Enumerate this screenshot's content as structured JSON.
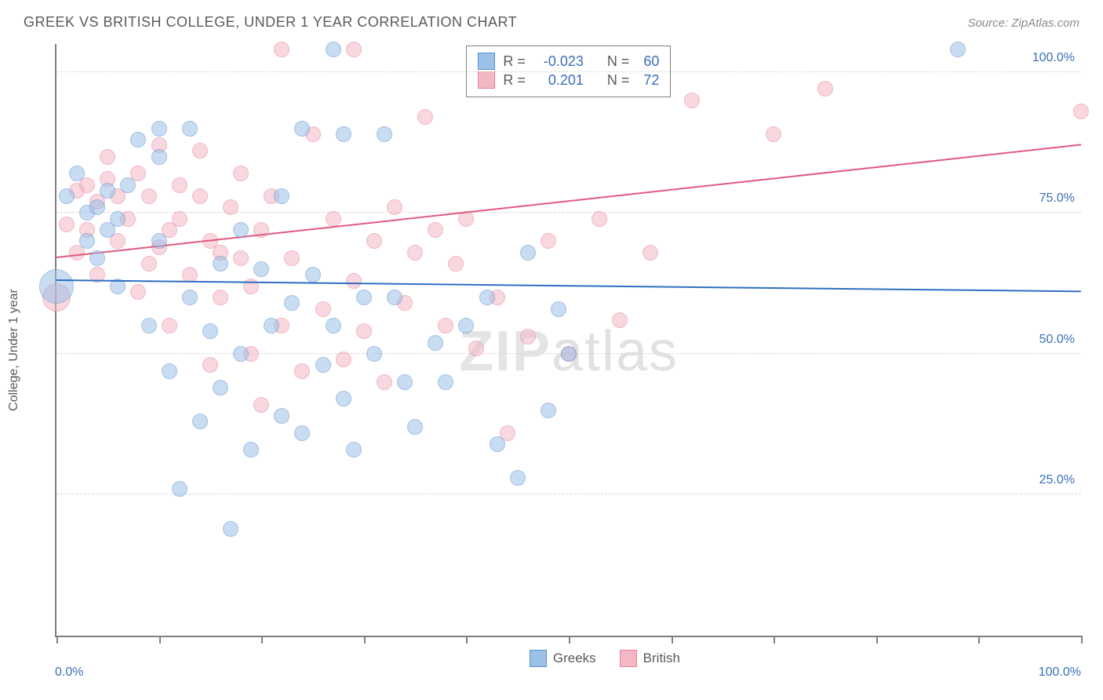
{
  "title": "GREEK VS BRITISH COLLEGE, UNDER 1 YEAR CORRELATION CHART",
  "source": "Source: ZipAtlas.com",
  "ylabel": "College, Under 1 year",
  "watermark": {
    "bold": "ZIP",
    "rest": "atlas"
  },
  "chart": {
    "type": "scatter",
    "xlim": [
      0,
      100
    ],
    "ylim": [
      0,
      105
    ],
    "background_color": "#ffffff",
    "grid_color": "#d9d9d9",
    "axis_color": "#808080",
    "tick_label_color": "#3b6fb6",
    "tick_fontsize": 16,
    "yticks": [
      25,
      50,
      75,
      100
    ],
    "ytick_labels": [
      "25.0%",
      "50.0%",
      "75.0%",
      "100.0%"
    ],
    "xticks": [
      0,
      10,
      20,
      30,
      40,
      50,
      60,
      70,
      80,
      90,
      100
    ],
    "xaxis_label_left": "0.0%",
    "xaxis_label_right": "100.0%",
    "marker_radius": 10,
    "marker_opacity": 0.55,
    "trend_width": 2
  },
  "series": {
    "greeks": {
      "label": "Greeks",
      "fill": "#9cc1e8",
      "stroke": "#5a8fce",
      "trend_color": "#2f6fc0",
      "R": "-0.023",
      "N": "60",
      "trend": {
        "x1": 0,
        "y1": 63,
        "x2": 100,
        "y2": 61
      },
      "points": [
        {
          "x": 0,
          "y": 62,
          "r": 22
        },
        {
          "x": 1,
          "y": 78
        },
        {
          "x": 2,
          "y": 82
        },
        {
          "x": 3,
          "y": 70
        },
        {
          "x": 3,
          "y": 75
        },
        {
          "x": 4,
          "y": 76
        },
        {
          "x": 4,
          "y": 67
        },
        {
          "x": 5,
          "y": 79
        },
        {
          "x": 5,
          "y": 72
        },
        {
          "x": 6,
          "y": 62
        },
        {
          "x": 7,
          "y": 80
        },
        {
          "x": 8,
          "y": 88
        },
        {
          "x": 9,
          "y": 55
        },
        {
          "x": 10,
          "y": 90
        },
        {
          "x": 10,
          "y": 70
        },
        {
          "x": 11,
          "y": 47
        },
        {
          "x": 12,
          "y": 26
        },
        {
          "x": 13,
          "y": 90
        },
        {
          "x": 13,
          "y": 60
        },
        {
          "x": 14,
          "y": 38
        },
        {
          "x": 15,
          "y": 54
        },
        {
          "x": 16,
          "y": 66
        },
        {
          "x": 16,
          "y": 44
        },
        {
          "x": 17,
          "y": 19
        },
        {
          "x": 18,
          "y": 72
        },
        {
          "x": 18,
          "y": 50
        },
        {
          "x": 19,
          "y": 33
        },
        {
          "x": 20,
          "y": 65
        },
        {
          "x": 21,
          "y": 55
        },
        {
          "x": 22,
          "y": 78
        },
        {
          "x": 22,
          "y": 39
        },
        {
          "x": 23,
          "y": 59
        },
        {
          "x": 24,
          "y": 90
        },
        {
          "x": 24,
          "y": 36
        },
        {
          "x": 25,
          "y": 64
        },
        {
          "x": 26,
          "y": 48
        },
        {
          "x": 27,
          "y": 104
        },
        {
          "x": 27,
          "y": 55
        },
        {
          "x": 28,
          "y": 89
        },
        {
          "x": 28,
          "y": 42
        },
        {
          "x": 29,
          "y": 33
        },
        {
          "x": 30,
          "y": 60
        },
        {
          "x": 31,
          "y": 50
        },
        {
          "x": 32,
          "y": 89
        },
        {
          "x": 33,
          "y": 60
        },
        {
          "x": 34,
          "y": 45
        },
        {
          "x": 35,
          "y": 37
        },
        {
          "x": 37,
          "y": 52
        },
        {
          "x": 38,
          "y": 45
        },
        {
          "x": 40,
          "y": 55
        },
        {
          "x": 42,
          "y": 60
        },
        {
          "x": 43,
          "y": 34
        },
        {
          "x": 45,
          "y": 28
        },
        {
          "x": 46,
          "y": 68
        },
        {
          "x": 48,
          "y": 40
        },
        {
          "x": 49,
          "y": 58
        },
        {
          "x": 50,
          "y": 50
        },
        {
          "x": 88,
          "y": 104
        },
        {
          "x": 10,
          "y": 85
        },
        {
          "x": 6,
          "y": 74
        }
      ]
    },
    "british": {
      "label": "British",
      "fill": "#f4b7c4",
      "stroke": "#e87f9a",
      "trend_color": "#e05a7e",
      "R": "0.201",
      "N": "72",
      "trend": {
        "x1": 0,
        "y1": 67,
        "x2": 100,
        "y2": 87
      },
      "points": [
        {
          "x": 0,
          "y": 60,
          "r": 18
        },
        {
          "x": 1,
          "y": 73
        },
        {
          "x": 2,
          "y": 79
        },
        {
          "x": 2,
          "y": 68
        },
        {
          "x": 3,
          "y": 80
        },
        {
          "x": 3,
          "y": 72
        },
        {
          "x": 4,
          "y": 77
        },
        {
          "x": 4,
          "y": 64
        },
        {
          "x": 5,
          "y": 81
        },
        {
          "x": 6,
          "y": 70
        },
        {
          "x": 7,
          "y": 74
        },
        {
          "x": 8,
          "y": 61
        },
        {
          "x": 9,
          "y": 78
        },
        {
          "x": 10,
          "y": 69
        },
        {
          "x": 10,
          "y": 87
        },
        {
          "x": 11,
          "y": 55
        },
        {
          "x": 12,
          "y": 74
        },
        {
          "x": 13,
          "y": 64
        },
        {
          "x": 14,
          "y": 78
        },
        {
          "x": 15,
          "y": 48
        },
        {
          "x": 15,
          "y": 70
        },
        {
          "x": 16,
          "y": 60
        },
        {
          "x": 17,
          "y": 76
        },
        {
          "x": 18,
          "y": 67
        },
        {
          "x": 19,
          "y": 50
        },
        {
          "x": 20,
          "y": 72
        },
        {
          "x": 20,
          "y": 41
        },
        {
          "x": 21,
          "y": 78
        },
        {
          "x": 22,
          "y": 104
        },
        {
          "x": 22,
          "y": 55
        },
        {
          "x": 23,
          "y": 67
        },
        {
          "x": 24,
          "y": 47
        },
        {
          "x": 25,
          "y": 89
        },
        {
          "x": 26,
          "y": 58
        },
        {
          "x": 27,
          "y": 74
        },
        {
          "x": 28,
          "y": 49
        },
        {
          "x": 29,
          "y": 104
        },
        {
          "x": 29,
          "y": 63
        },
        {
          "x": 30,
          "y": 54
        },
        {
          "x": 31,
          "y": 70
        },
        {
          "x": 32,
          "y": 45
        },
        {
          "x": 33,
          "y": 76
        },
        {
          "x": 34,
          "y": 59
        },
        {
          "x": 35,
          "y": 68
        },
        {
          "x": 36,
          "y": 92
        },
        {
          "x": 37,
          "y": 72
        },
        {
          "x": 38,
          "y": 55
        },
        {
          "x": 39,
          "y": 66
        },
        {
          "x": 40,
          "y": 74
        },
        {
          "x": 41,
          "y": 51
        },
        {
          "x": 43,
          "y": 60
        },
        {
          "x": 44,
          "y": 36
        },
        {
          "x": 46,
          "y": 53
        },
        {
          "x": 48,
          "y": 70
        },
        {
          "x": 50,
          "y": 50
        },
        {
          "x": 53,
          "y": 74
        },
        {
          "x": 55,
          "y": 56
        },
        {
          "x": 58,
          "y": 68
        },
        {
          "x": 62,
          "y": 95
        },
        {
          "x": 70,
          "y": 89
        },
        {
          "x": 75,
          "y": 97
        },
        {
          "x": 100,
          "y": 93
        },
        {
          "x": 5,
          "y": 85
        },
        {
          "x": 8,
          "y": 82
        },
        {
          "x": 12,
          "y": 80
        },
        {
          "x": 14,
          "y": 86
        },
        {
          "x": 18,
          "y": 82
        },
        {
          "x": 6,
          "y": 78
        },
        {
          "x": 9,
          "y": 66
        },
        {
          "x": 11,
          "y": 72
        },
        {
          "x": 16,
          "y": 68
        },
        {
          "x": 19,
          "y": 62
        }
      ]
    }
  },
  "legend_top": {
    "r_label": "R =",
    "n_label": "N ="
  }
}
